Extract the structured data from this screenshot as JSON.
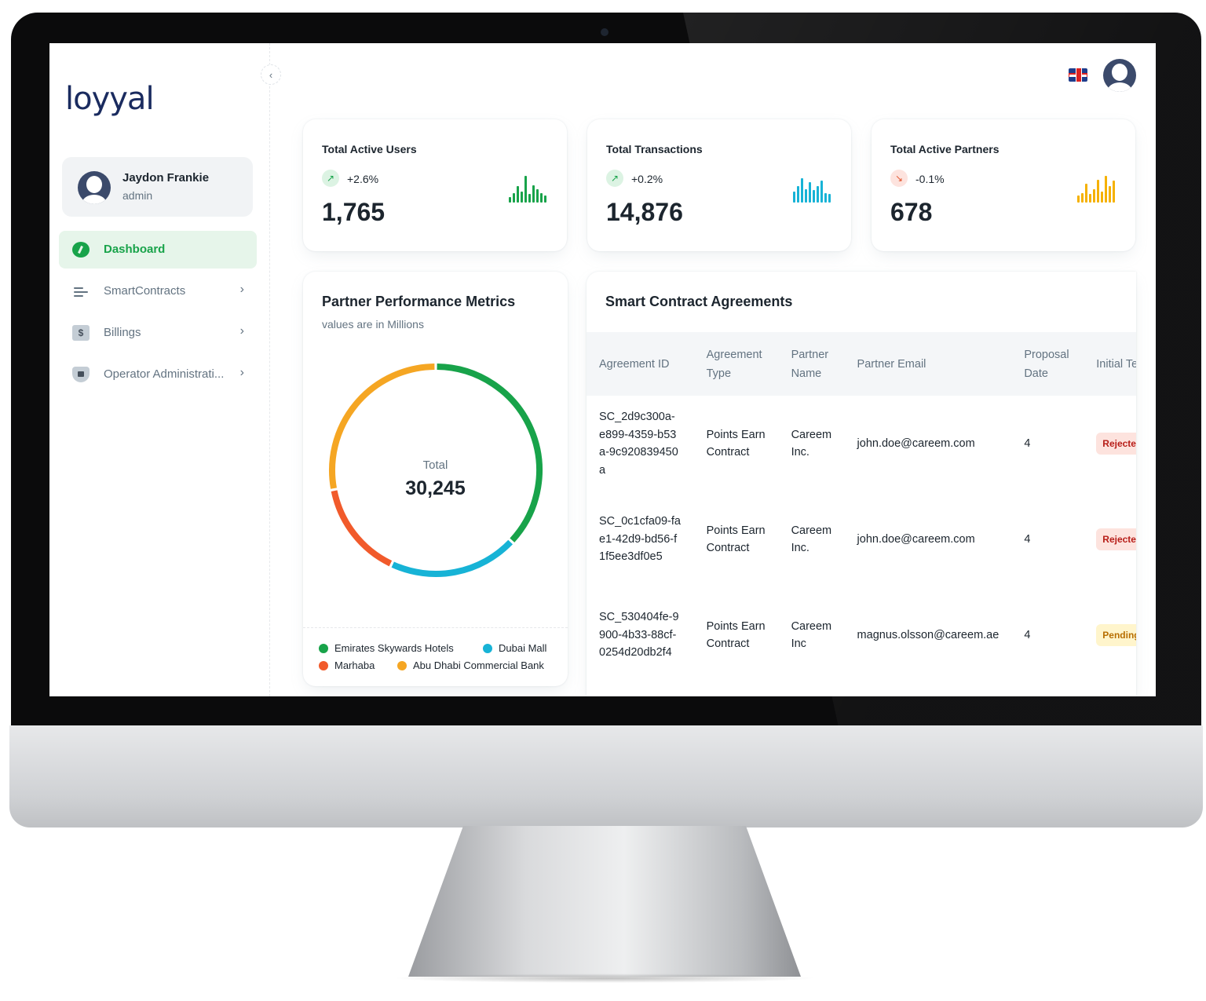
{
  "app": {
    "logo": "loyyal"
  },
  "user": {
    "name": "Jaydon Frankie",
    "role": "admin"
  },
  "nav": {
    "collapse_icon": "‹",
    "items": [
      {
        "label": "Dashboard",
        "icon": "dashboard-icon"
      },
      {
        "label": "SmartContracts",
        "icon": "list-icon"
      },
      {
        "label": "Billings",
        "icon": "invoice-icon"
      },
      {
        "label": "Operator Administrati...",
        "icon": "shield-lock-icon"
      }
    ]
  },
  "stats": [
    {
      "title": "Total Active Users",
      "change": "+2.6%",
      "trend": "up",
      "value": "1,765",
      "color": "#18a34a",
      "bars": [
        0.15,
        0.3,
        0.55,
        0.35,
        0.95,
        0.25,
        0.6,
        0.45,
        0.3,
        0.2
      ]
    },
    {
      "title": "Total Transactions",
      "change": "+0.2%",
      "trend": "up",
      "value": "14,876",
      "color": "#17b3d6",
      "bars": [
        0.35,
        0.55,
        0.85,
        0.45,
        0.7,
        0.4,
        0.55,
        0.75,
        0.3,
        0.25
      ]
    },
    {
      "title": "Total Active Partners",
      "change": "-0.1%",
      "trend": "down",
      "value": "678",
      "color": "#f5b100",
      "bars": [
        0.2,
        0.3,
        0.65,
        0.25,
        0.45,
        0.8,
        0.35,
        0.95,
        0.55,
        0.75
      ]
    }
  ],
  "performance": {
    "title": "Partner Performance Metrics",
    "subtitle": "values are in Millions",
    "total_label": "Total",
    "total_value": "30,245"
  },
  "chart_data": {
    "type": "pie",
    "total": 30245,
    "series": [
      {
        "name": "Emirates Skywards Hotels",
        "value": 11190,
        "color": "#18a34a"
      },
      {
        "name": "Dubai Mall",
        "value": 6050,
        "color": "#17b3d6"
      },
      {
        "name": "Marhaba",
        "value": 4540,
        "color": "#f15a2b"
      },
      {
        "name": "Abu Dhabi Commercial Bank",
        "value": 8465,
        "color": "#f5a623"
      }
    ]
  },
  "agreements": {
    "title": "Smart Contract Agreements",
    "columns": [
      "Agreement ID",
      "Agreement Type",
      "Partner Name",
      "Partner Email",
      "Proposal Date",
      "Initial Term"
    ],
    "rows": [
      {
        "id": "SC_2d9c300a-e899-4359-b53a-9c920839450a",
        "type": "Points Earn Contract",
        "partner": "Careem Inc.",
        "email": "john.doe@careem.com",
        "date": "4",
        "status": "Rejected"
      },
      {
        "id": "SC_0c1cfa09-fae1-42d9-bd56-f1f5ee3df0e5",
        "type": "Points Earn Contract",
        "partner": "Careem Inc.",
        "email": "john.doe@careem.com",
        "date": "4",
        "status": "Rejected"
      },
      {
        "id": "SC_530404fe-9900-4b33-88cf-0254d20db2f4",
        "type": "Points Earn Contract",
        "partner": "Careem Inc",
        "email": "magnus.olsson@careem.ae",
        "date": "4",
        "status": "Pending"
      }
    ]
  }
}
